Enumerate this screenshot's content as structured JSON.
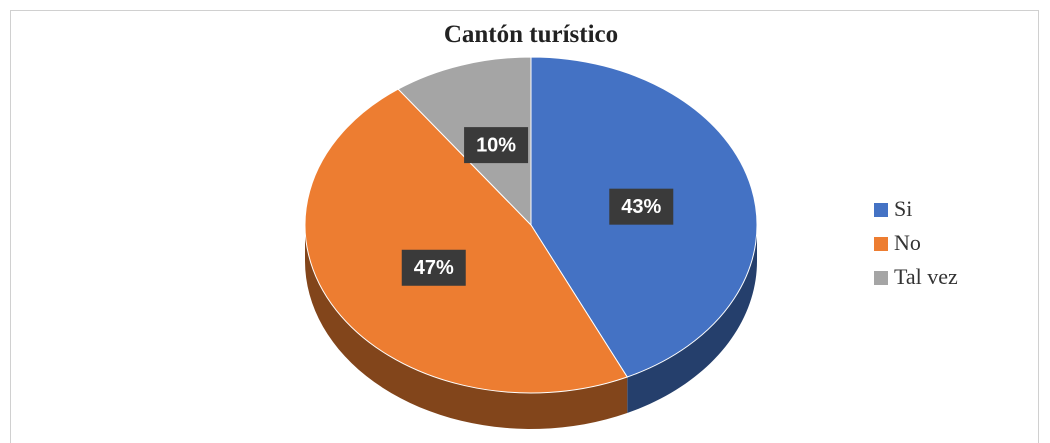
{
  "chart_data": {
    "type": "pie",
    "title": "Cantón turístico",
    "categories": [
      "Si",
      "No",
      "Tal vez"
    ],
    "values": [
      43,
      47,
      10
    ],
    "value_labels": [
      "43%",
      "47%",
      "10%"
    ],
    "colors": [
      "#4472c4",
      "#ed7d31",
      "#a5a5a5"
    ],
    "legend": "right"
  }
}
